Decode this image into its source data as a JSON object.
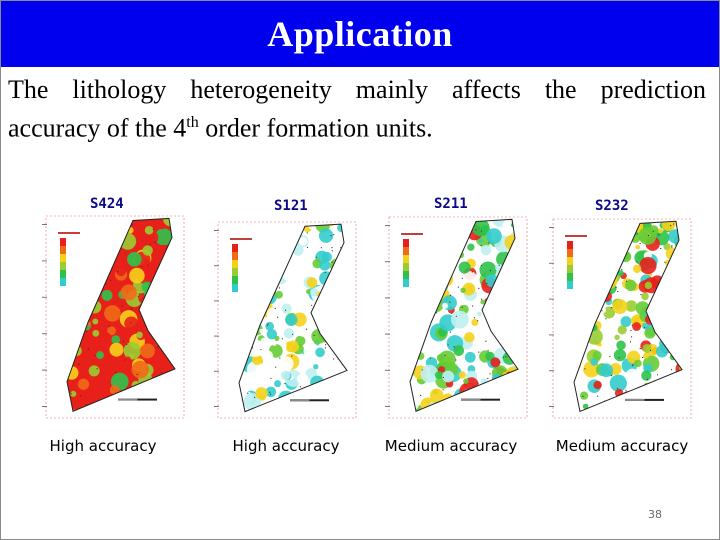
{
  "slide": {
    "title": "Application",
    "text_line1": "The lithology heterogeneity mainly affects the prediction",
    "text_line2_before": "accuracy of the 4",
    "text_line2_sup": "th",
    "text_line2_after": " order formation units.",
    "page_number": "38"
  },
  "maps": [
    {
      "label": "S424",
      "caption": "High accuracy",
      "palette": "red-dominant"
    },
    {
      "label": "S121",
      "caption": "High accuracy",
      "palette": "cyan-dominant"
    },
    {
      "label": "S211",
      "caption": "Medium accuracy",
      "palette": "mixed"
    },
    {
      "label": "S232",
      "caption": "Medium accuracy",
      "palette": "mixed-green"
    }
  ],
  "colors": {
    "title_bar": "#0000ee",
    "title_text": "#ffffff",
    "map_label": "#0a0a8a"
  }
}
